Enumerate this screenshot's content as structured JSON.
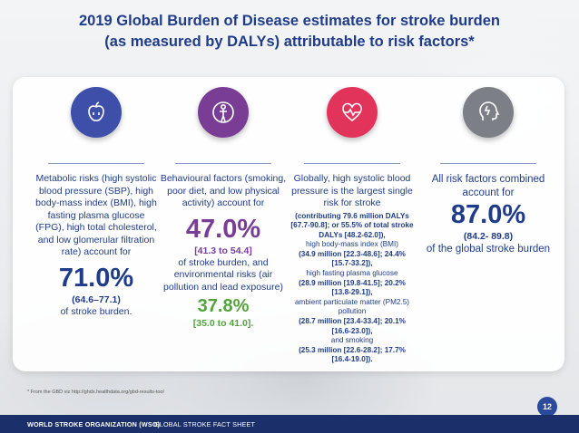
{
  "title": {
    "line1": "2019 Global Burden of Disease estimates for stroke burden",
    "line2": "(as measured by DALYs) attributable to risk factors*"
  },
  "columns": [
    {
      "icon": "apple-icon",
      "color": "#3d4fa8",
      "text": "Metabolic risks (high systolic blood pressure (SBP), high body-mass index (BMI), high fasting plasma glucose (FPG), high total cholesterol, and low glomerular filtration rate) account for",
      "value": "71.0%",
      "range": "(64.6–77.1)",
      "tail": "of stroke burden."
    },
    {
      "icon": "person-icon",
      "color": "#7a3d96",
      "text": "Behavioural factors (smoking, poor diet, and low physical activity) account for",
      "value": "47.0%",
      "range": "[41.3 to 54.4]",
      "mid": "of stroke burden, and environmental risks (air pollution and lead exposure)",
      "value2": "37.8%",
      "range2": "[35.0 to 41.0]."
    },
    {
      "icon": "heart-pulse-icon",
      "color": "#e2335b",
      "text": "Globally, high systolic blood pressure is the largest single risk for stroke",
      "p1": "(contributing 79.6 million DALYs [67.7-90.8]; or 55.5% of total stroke DALYs [48.2-62.0]),",
      "p2": "high body-mass index (BMI)",
      "p3": "(34.9 million [22.3-48.6]; 24.4% [15.7-33.2]),",
      "p4": "high fasting plasma glucose",
      "p5": "(28.9 million [19.8-41.5]; 20.2% [13.8-29.1]),",
      "p6": "ambient particulate matter (PM2.5) pollution",
      "p7": "(28.7 million [23.4-33.4]; 20.1% [16.6-23.0]),",
      "p8": "and smoking",
      "p9": "(25.3 million [22.6-28.2]; 17.7% [16.4-19.0])."
    },
    {
      "icon": "brain-head-icon",
      "color": "#7c7f86",
      "text": "All risk factors combined account for",
      "value": "87.0%",
      "range": "(84.2- 89.8)",
      "tail": "of the global stroke burden"
    }
  ],
  "footnote": "* From the GBD viz http://ghdx.healthdata.org/gbd-results-tool",
  "page_number": "12",
  "footer": {
    "org": "WORLD STROKE ORGANIZATION (WSO)",
    "sheet": "GLOBAL STROKE FACT SHEET"
  }
}
